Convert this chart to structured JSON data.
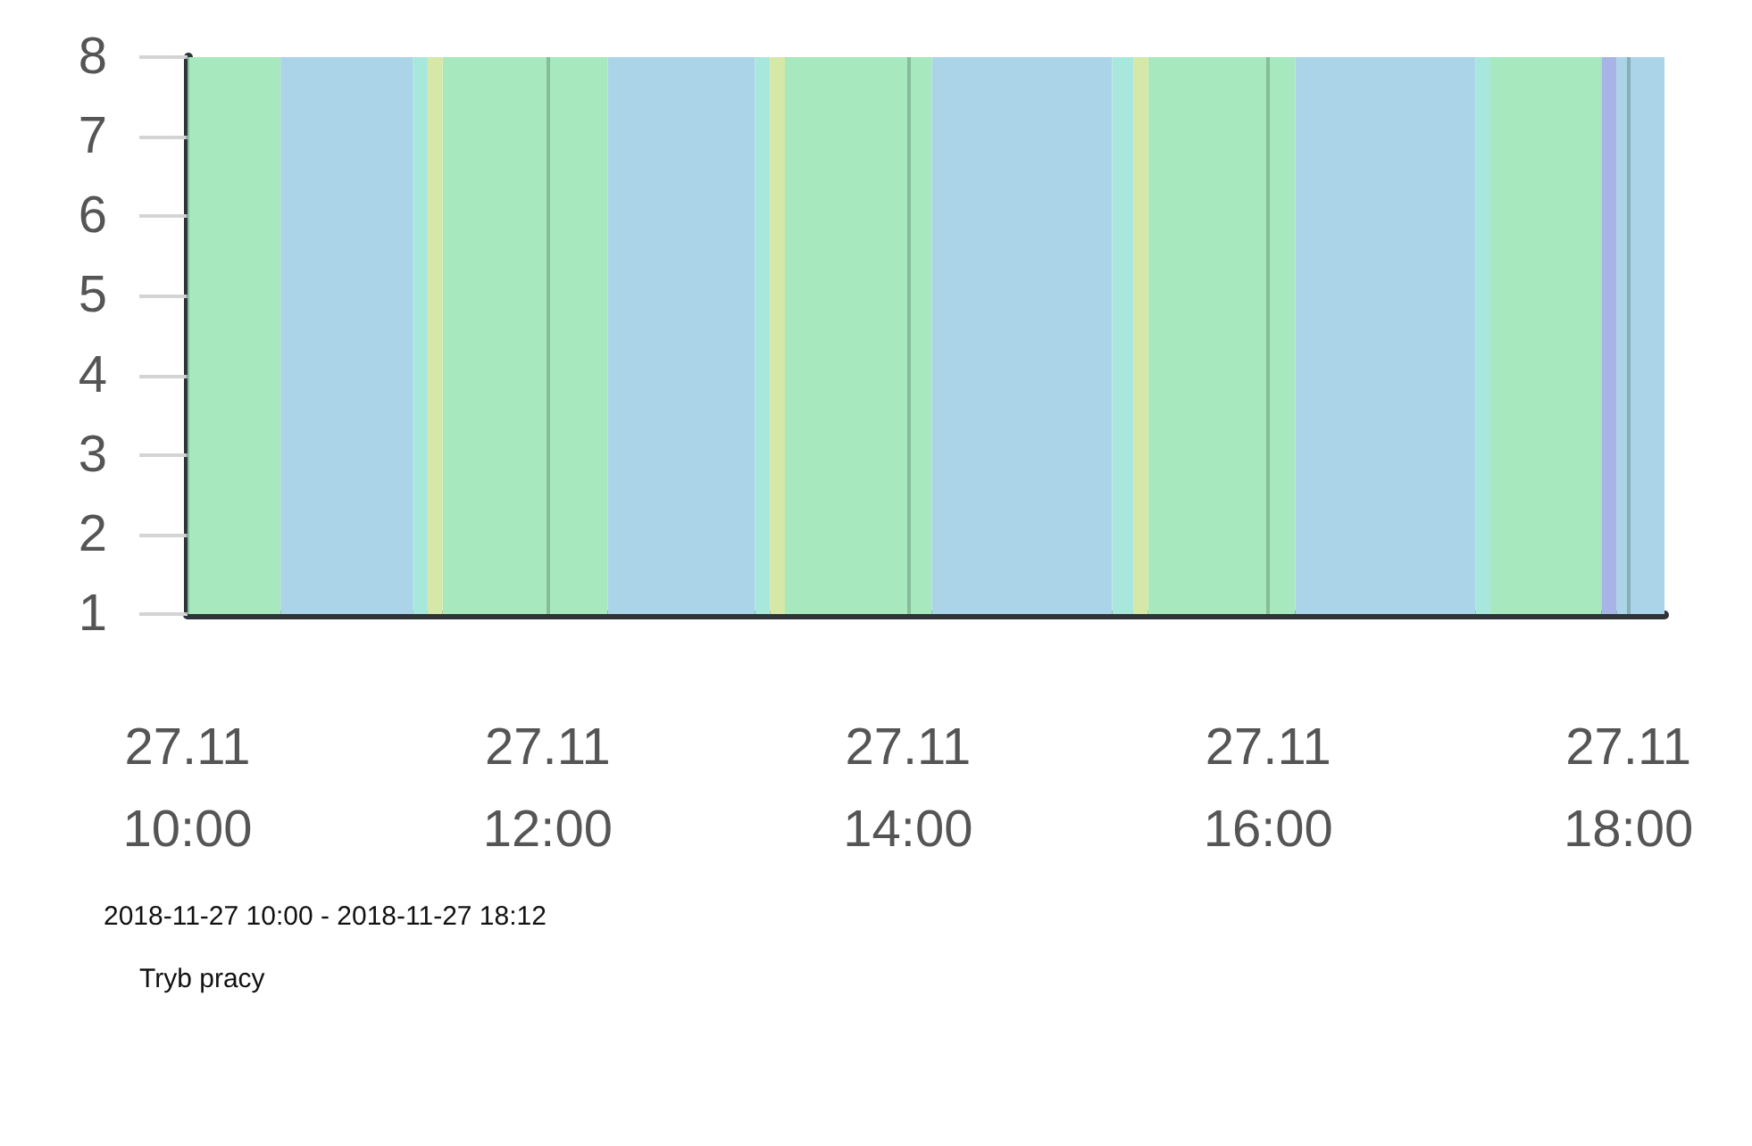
{
  "chart_data": {
    "type": "area",
    "annotations": [
      "2018-11-27 10:00 - 2018-11-27 18:12",
      "Tryb pracy"
    ],
    "x": [
      "2018-11-27T10:00",
      "2018-11-27T10:31",
      "2018-11-27T11:15",
      "2018-11-27T11:20",
      "2018-11-27T11:25",
      "2018-11-27T12:20",
      "2018-11-27T13:09",
      "2018-11-27T13:14",
      "2018-11-27T13:19",
      "2018-11-27T14:08",
      "2018-11-27T15:08",
      "2018-11-27T15:15",
      "2018-11-27T15:20",
      "2018-11-27T16:09",
      "2018-11-27T17:09",
      "2018-11-27T17:14",
      "2018-11-27T17:51",
      "2018-11-27T17:56",
      "2018-11-27T18:12"
    ],
    "series": [
      {
        "color": "#a8e8be",
        "values": [
          8,
          8,
          null,
          null,
          8,
          8,
          null,
          null,
          8,
          8,
          null,
          null,
          8,
          8,
          null,
          8,
          8,
          null,
          null
        ]
      },
      {
        "color": "#abd4e8",
        "values": [
          null,
          8,
          8,
          null,
          null,
          8,
          8,
          null,
          null,
          8,
          8,
          null,
          null,
          8,
          8,
          null,
          null,
          8,
          8
        ]
      },
      {
        "color": "#a8e8dc",
        "values": [
          null,
          null,
          8,
          8,
          null,
          null,
          8,
          8,
          null,
          null,
          8,
          8,
          null,
          null,
          8,
          8,
          null,
          null,
          null
        ]
      },
      {
        "color": "#d6e8a8",
        "values": [
          null,
          null,
          null,
          8,
          8,
          null,
          null,
          8,
          8,
          null,
          null,
          8,
          8,
          null,
          null,
          null,
          null,
          null,
          null
        ]
      },
      {
        "color": "#a8b4e6",
        "values": [
          null,
          null,
          null,
          null,
          null,
          null,
          null,
          null,
          null,
          null,
          null,
          null,
          null,
          null,
          null,
          null,
          8,
          8,
          null
        ]
      }
    ],
    "xlim": [
      "2018-11-27T10:00",
      "2018-11-27T18:12"
    ],
    "xticks": [
      {
        "value": "2018-11-27T10:00",
        "label": "27.11\n10:00"
      },
      {
        "value": "2018-11-27T12:00",
        "label": "27.11\n12:00"
      },
      {
        "value": "2018-11-27T14:00",
        "label": "27.11\n14:00"
      },
      {
        "value": "2018-11-27T16:00",
        "label": "27.11\n16:00"
      },
      {
        "value": "2018-11-27T18:00",
        "label": "27.11\n18:00"
      }
    ],
    "ylim": [
      1,
      8
    ],
    "yticks": [
      1,
      2,
      3,
      4,
      5,
      6,
      7,
      8
    ],
    "grid": "x"
  }
}
